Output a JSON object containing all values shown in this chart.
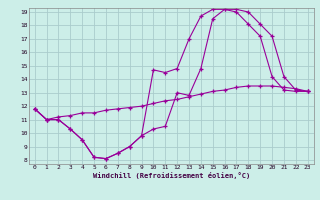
{
  "xlabel": "Windchill (Refroidissement éolien,°C)",
  "bg_color": "#cceee8",
  "grid_color": "#aacccc",
  "line_color": "#990099",
  "xmin": 0,
  "xmax": 23,
  "ymin": 8,
  "ymax": 19,
  "line1_x": [
    0,
    1,
    2,
    3,
    4,
    5,
    6,
    7,
    8,
    9,
    10,
    11,
    12,
    13,
    14,
    15,
    16,
    17,
    18,
    19,
    20,
    21,
    22,
    23
  ],
  "line1_y": [
    11.8,
    11.0,
    11.0,
    10.3,
    9.5,
    8.2,
    8.1,
    8.5,
    9.0,
    9.8,
    10.3,
    10.5,
    13.0,
    12.8,
    14.8,
    18.5,
    19.2,
    19.2,
    19.0,
    18.1,
    17.2,
    14.2,
    13.2,
    13.1
  ],
  "line2_x": [
    0,
    1,
    2,
    3,
    4,
    5,
    6,
    7,
    8,
    9,
    10,
    11,
    12,
    13,
    14,
    15,
    16,
    17,
    18,
    19,
    20,
    21,
    22,
    23
  ],
  "line2_y": [
    11.8,
    11.0,
    11.0,
    10.3,
    9.5,
    8.2,
    8.1,
    8.5,
    9.0,
    9.8,
    14.7,
    14.5,
    14.8,
    17.0,
    18.7,
    19.2,
    19.2,
    19.0,
    18.1,
    17.2,
    14.2,
    13.2,
    13.1,
    13.1
  ],
  "line3_x": [
    0,
    1,
    2,
    3,
    4,
    5,
    6,
    7,
    8,
    9,
    10,
    11,
    12,
    13,
    14,
    15,
    16,
    17,
    18,
    19,
    20,
    21,
    22,
    23
  ],
  "line3_y": [
    11.8,
    11.0,
    11.2,
    11.3,
    11.5,
    11.5,
    11.7,
    11.8,
    11.9,
    12.0,
    12.2,
    12.4,
    12.5,
    12.7,
    12.9,
    13.1,
    13.2,
    13.4,
    13.5,
    13.5,
    13.5,
    13.4,
    13.3,
    13.1
  ]
}
